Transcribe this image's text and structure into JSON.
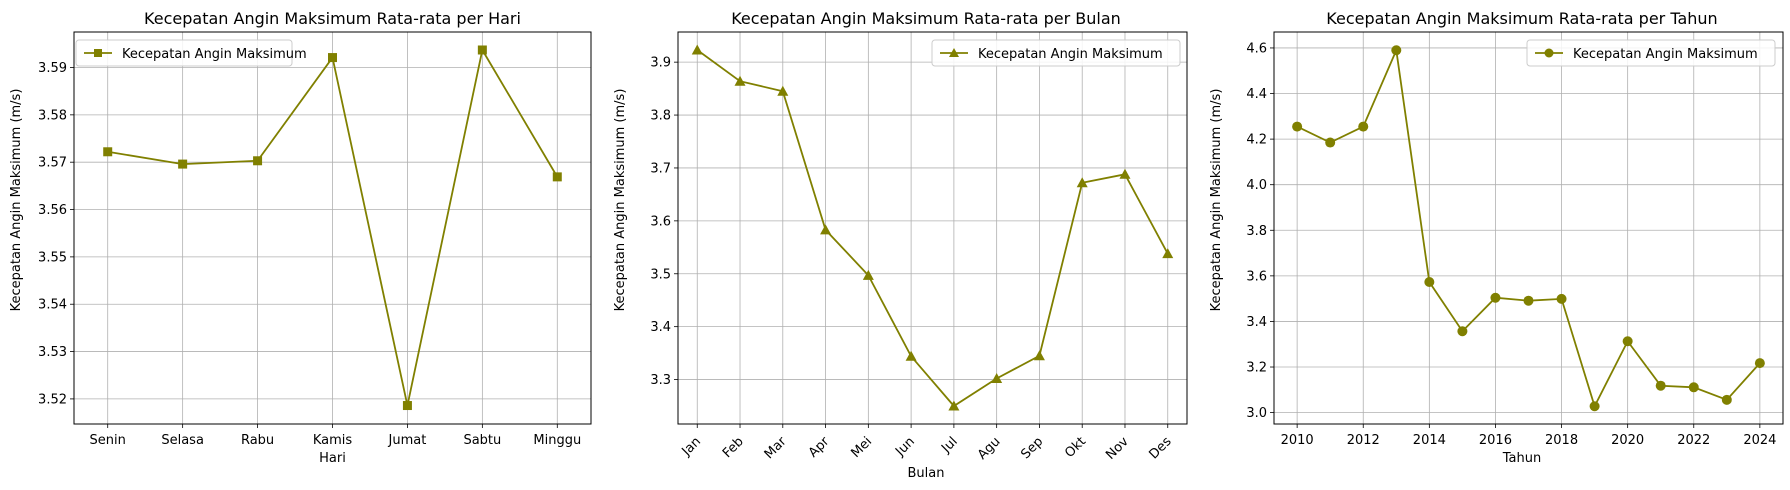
{
  "figure": {
    "line_color": "#808000",
    "grid_color": "#b0b0b0"
  },
  "chart_data": [
    {
      "type": "line",
      "title": "Kecepatan Angin Maksimum Rata-rata per Hari",
      "xlabel": "Hari",
      "ylabel": "Kecepatan Angin Maksimum (m/s)",
      "categories": [
        "Senin",
        "Selasa",
        "Rabu",
        "Kamis",
        "Jumat",
        "Sabtu",
        "Minggu"
      ],
      "series": [
        {
          "name": "Kecepatan Angin Maksimum",
          "marker": "square",
          "values": [
            3.5722,
            3.5696,
            3.5703,
            3.5921,
            3.5186,
            3.5937,
            3.5669
          ]
        }
      ],
      "ylim": [
        3.5147,
        3.5975
      ],
      "yticks": [
        "3.52",
        "3.53",
        "3.54",
        "3.55",
        "3.56",
        "3.57",
        "3.58",
        "3.59"
      ],
      "grid": true,
      "legend": "top-left",
      "xtick_rotation": 0
    },
    {
      "type": "line",
      "title": "Kecepatan Angin Maksimum Rata-rata per Bulan",
      "xlabel": "Bulan",
      "ylabel": "Kecepatan Angin Maksimum (m/s)",
      "categories": [
        "Jan",
        "Feb",
        "Mar",
        "Apr",
        "Mei",
        "Jun",
        "Jul",
        "Agu",
        "Sep",
        "Okt",
        "Nov",
        "Des"
      ],
      "series": [
        {
          "name": "Kecepatan Angin Maksimum",
          "marker": "triangle",
          "values": [
            3.923,
            3.864,
            3.845,
            3.583,
            3.497,
            3.344,
            3.25,
            3.302,
            3.345,
            3.672,
            3.688,
            3.538
          ]
        }
      ],
      "ylim": [
        3.216,
        3.957
      ],
      "yticks": [
        "3.3",
        "3.4",
        "3.5",
        "3.6",
        "3.7",
        "3.8",
        "3.9"
      ],
      "grid": true,
      "legend": "top-right",
      "xtick_rotation": -45
    },
    {
      "type": "line",
      "title": "Kecepatan Angin Maksimum Rata-rata per Tahun",
      "xlabel": "Tahun",
      "ylabel": "Kecepatan Angin Maksimum (m/s)",
      "x": [
        2010,
        2011,
        2012,
        2013,
        2014,
        2015,
        2016,
        2017,
        2018,
        2019,
        2020,
        2021,
        2022,
        2023,
        2024
      ],
      "xticks": [
        "2010",
        "2012",
        "2014",
        "2016",
        "2018",
        "2020",
        "2022",
        "2024"
      ],
      "series": [
        {
          "name": "Kecepatan Angin Maksimum",
          "marker": "circle",
          "values": [
            4.255,
            4.185,
            4.255,
            4.59,
            3.573,
            3.357,
            3.504,
            3.491,
            3.499,
            3.028,
            3.313,
            3.118,
            3.111,
            3.056,
            3.217
          ]
        }
      ],
      "xlim": [
        2009.3,
        2024.7
      ],
      "ylim": [
        2.95,
        4.67
      ],
      "yticks": [
        "3.0",
        "3.2",
        "3.4",
        "3.6",
        "3.8",
        "4.0",
        "4.2",
        "4.4",
        "4.6"
      ],
      "grid": true,
      "legend": "top-right",
      "xtick_rotation": 0
    }
  ]
}
